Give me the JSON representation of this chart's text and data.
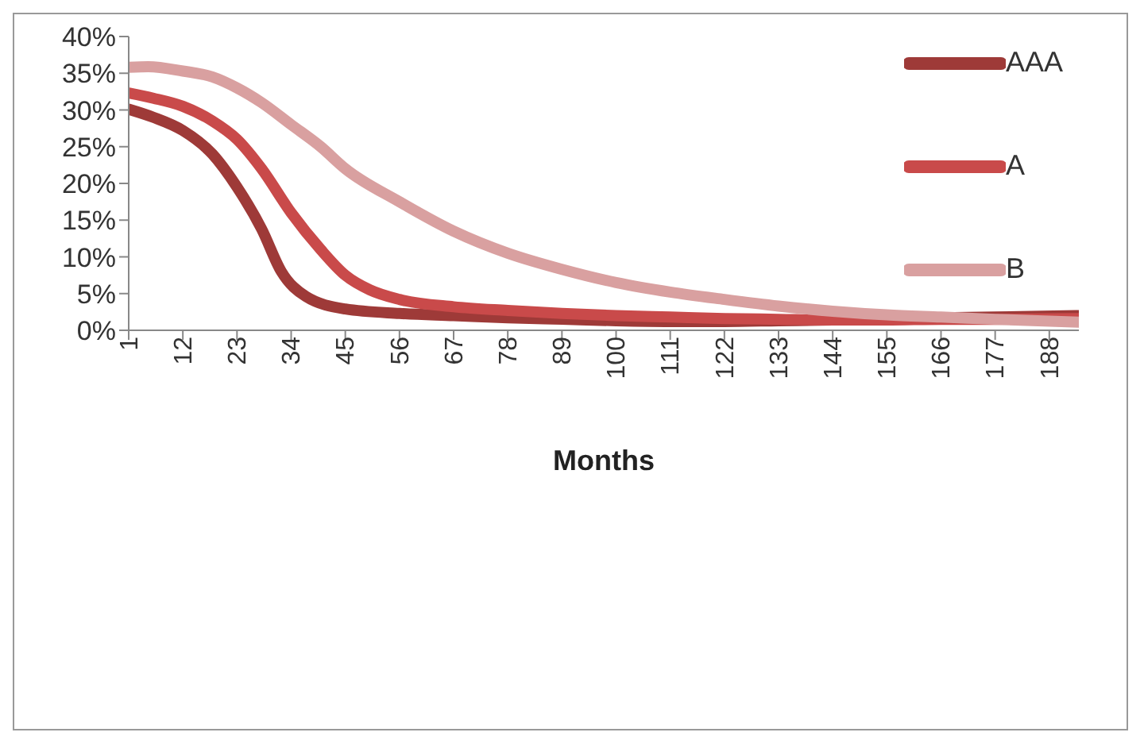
{
  "chart_data": {
    "type": "line",
    "xlabel": "Months",
    "xlim": [
      1,
      194
    ],
    "xticks": [
      1,
      12,
      23,
      34,
      45,
      56,
      67,
      78,
      89,
      100,
      111,
      122,
      133,
      144,
      155,
      166,
      177,
      188
    ],
    "ylim": [
      0,
      40
    ],
    "yticks": [
      {
        "value": 0,
        "label": "0%"
      },
      {
        "value": 5,
        "label": "5%"
      },
      {
        "value": 10,
        "label": "10%"
      },
      {
        "value": 15,
        "label": "15%"
      },
      {
        "value": 20,
        "label": "20%"
      },
      {
        "value": 25,
        "label": "25%"
      },
      {
        "value": 30,
        "label": "30%"
      },
      {
        "value": 35,
        "label": "35%"
      },
      {
        "value": 40,
        "label": "40%"
      }
    ],
    "grid": false,
    "legend": "top right",
    "marker": "none",
    "line_style": "solid",
    "series": [
      {
        "name": "AAA",
        "color": "#9e3a38",
        "x": [
          1,
          6,
          12,
          18,
          23,
          28,
          32,
          37,
          45,
          56,
          67,
          78,
          89,
          100,
          111,
          122,
          133,
          144,
          155,
          166,
          177,
          194
        ],
        "values": [
          30.1,
          29,
          27.2,
          24,
          19.5,
          13.8,
          8,
          4.6,
          2.9,
          2.3,
          2,
          1.7,
          1.5,
          1.3,
          1.2,
          1.2,
          1.3,
          1.4,
          1.6,
          1.7,
          1.8,
          2
        ]
      },
      {
        "name": "A",
        "color": "#c94a4a",
        "x": [
          1,
          6,
          12,
          18,
          23,
          28,
          34,
          40,
          45,
          50,
          56,
          67,
          78,
          89,
          100,
          111,
          122,
          133,
          144,
          155,
          166,
          177,
          194
        ],
        "values": [
          32.3,
          31.6,
          30.5,
          28.5,
          26,
          22,
          16,
          11,
          7.5,
          5.5,
          4.2,
          3.2,
          2.7,
          2.3,
          2,
          1.8,
          1.6,
          1.5,
          1.4,
          1.4,
          1.5,
          1.5,
          1.6
        ]
      },
      {
        "name": "B",
        "color": "#d9a0a0",
        "x": [
          1,
          5,
          12,
          18,
          23,
          28,
          34,
          40,
          45,
          56,
          67,
          78,
          89,
          100,
          111,
          122,
          133,
          144,
          155,
          166,
          177,
          194
        ],
        "values": [
          35.8,
          35.9,
          35.3,
          34.5,
          33,
          31,
          28,
          25,
          22,
          17.5,
          13.5,
          10.5,
          8.3,
          6.5,
          5.2,
          4.2,
          3.3,
          2.6,
          2.1,
          1.8,
          1.5,
          1.1
        ]
      }
    ]
  }
}
